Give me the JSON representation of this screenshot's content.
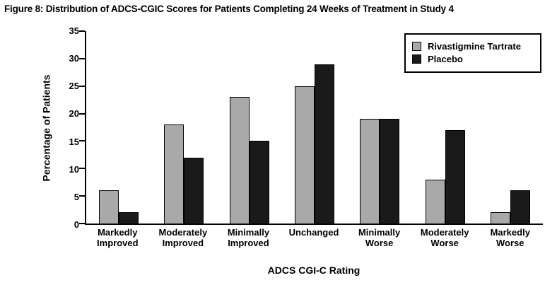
{
  "figure": {
    "title": "Figure 8: Distribution of ADCS-CGIC Scores for Patients Completing 24 Weeks of Treatment in Study 4"
  },
  "chart_data": {
    "type": "bar",
    "title": "Figure 8: Distribution of ADCS-CGIC Scores for Patients Completing 24 Weeks of Treatment in Study 4",
    "categories": [
      "Markedly Improved",
      "Moderately Improved",
      "Minimally Improved",
      "Unchanged",
      "Minimally Worse",
      "Moderately Worse",
      "Markedly Worse"
    ],
    "series": [
      {
        "name": "Rivastigmine Tartrate",
        "color": "#a9a9a9",
        "values": [
          6,
          18,
          23,
          25,
          19,
          8,
          2
        ]
      },
      {
        "name": "Placebo",
        "color": "#1a1a1a",
        "values": [
          2,
          12,
          15,
          29,
          19,
          17,
          6
        ]
      }
    ],
    "xlabel": "ADCS CGI-C Rating",
    "ylabel": "Percentage of Patients",
    "ylim": [
      0,
      35
    ],
    "ytick_step": 5,
    "yticks": [
      0,
      5,
      10,
      15,
      20,
      25,
      30,
      35
    ],
    "legend_position": "top-right",
    "grid": false,
    "colors": {
      "axis": "#000000",
      "background": "#ffffff"
    }
  }
}
